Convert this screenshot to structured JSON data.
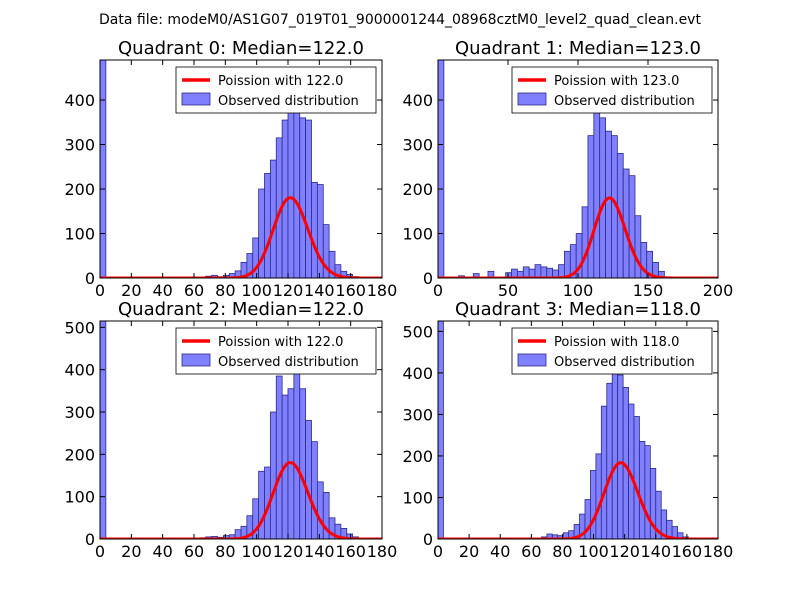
{
  "figure": {
    "suptitle": "Data file: modeM0/AS1G07_019T01_9000001244_08968cztM0_level2_quad_clean.evt"
  },
  "colors": {
    "bar_fill": "#8080ff",
    "bar_stroke": "#2a2a8a",
    "line": "#ff0000",
    "axis": "#000000"
  },
  "chart_data": [
    {
      "type": "bar",
      "title": "Quadrant 0: Median=122.0",
      "xlim": [
        0,
        180
      ],
      "ylim": [
        0,
        490
      ],
      "xticks": [
        0,
        20,
        40,
        60,
        80,
        100,
        120,
        140,
        160,
        180
      ],
      "xtick_labels": [
        "0",
        "20",
        "40",
        "60",
        "80",
        "100",
        "120",
        "140",
        "160",
        "180"
      ],
      "yticks": [
        0,
        100,
        200,
        300,
        400
      ],
      "ytick_labels": [
        "0",
        "100",
        "200",
        "300",
        "400"
      ],
      "bin_width": 3.75,
      "bin_lefts": [
        0,
        67.5,
        71.25,
        75,
        78.75,
        82.5,
        86.25,
        90,
        93.75,
        97.5,
        101.25,
        105,
        108.75,
        112.5,
        116.25,
        120,
        123.75,
        127.5,
        131.25,
        135,
        138.75,
        142.5,
        146.25,
        150,
        153.75,
        157.5,
        161.25
      ],
      "counts": [
        490,
        4,
        6,
        3,
        6,
        10,
        16,
        35,
        55,
        90,
        200,
        235,
        265,
        315,
        355,
        380,
        440,
        360,
        355,
        215,
        210,
        120,
        60,
        30,
        15,
        8,
        3
      ],
      "legend": {
        "line_label": "Poission with 122.0",
        "bar_label": "Observed distribution",
        "position": "upper right"
      },
      "poisson": {
        "mean": 122.0,
        "total": 5000
      }
    },
    {
      "type": "bar",
      "title": "Quadrant 1: Median=123.0",
      "xlim": [
        0,
        200
      ],
      "ylim": [
        0,
        490
      ],
      "xticks": [
        0,
        50,
        100,
        150,
        200
      ],
      "xtick_labels": [
        "0",
        "50",
        "100",
        "150",
        "200"
      ],
      "yticks": [
        0,
        100,
        200,
        300,
        400
      ],
      "ytick_labels": [
        "0",
        "100",
        "200",
        "300",
        "400"
      ],
      "bin_width": 4.2,
      "bin_lefts": [
        0,
        14.7,
        25.2,
        35.7,
        48.3,
        52.5,
        56.7,
        60.9,
        65.1,
        69.3,
        73.5,
        77.7,
        81.9,
        86.1,
        90.3,
        94.5,
        98.7,
        102.9,
        107.1,
        111.3,
        115.5,
        119.7,
        123.9,
        128.1,
        132.3,
        136.5,
        140.7,
        144.9,
        149.1,
        153.3,
        157.5
      ],
      "counts": [
        490,
        5,
        10,
        15,
        12,
        20,
        15,
        25,
        20,
        30,
        25,
        22,
        18,
        30,
        60,
        75,
        100,
        160,
        320,
        400,
        360,
        330,
        320,
        280,
        245,
        230,
        140,
        80,
        60,
        35,
        15
      ],
      "legend": {
        "line_label": "Poission with 123.0",
        "bar_label": "Observed distribution",
        "position": "upper right"
      },
      "poisson": {
        "mean": 123.0,
        "total": 5000
      }
    },
    {
      "type": "bar",
      "title": "Quadrant 2: Median=122.0",
      "xlim": [
        0,
        180
      ],
      "ylim": [
        0,
        515
      ],
      "xticks": [
        0,
        20,
        40,
        60,
        80,
        100,
        120,
        140,
        160,
        180
      ],
      "xtick_labels": [
        "0",
        "20",
        "40",
        "60",
        "80",
        "100",
        "120",
        "140",
        "160",
        "180"
      ],
      "yticks": [
        0,
        100,
        200,
        300,
        400,
        500
      ],
      "ytick_labels": [
        "0",
        "100",
        "200",
        "300",
        "400",
        "500"
      ],
      "bin_width": 3.75,
      "bin_lefts": [
        0,
        63.75,
        67.5,
        71.25,
        75,
        78.75,
        82.5,
        86.25,
        90,
        93.75,
        97.5,
        101.25,
        105,
        108.75,
        112.5,
        116.25,
        120,
        123.75,
        127.5,
        131.25,
        135,
        138.75,
        142.5,
        146.25,
        150,
        153.75,
        157.5,
        161.25
      ],
      "counts": [
        515,
        3,
        5,
        6,
        4,
        8,
        10,
        22,
        30,
        55,
        95,
        160,
        170,
        300,
        385,
        340,
        355,
        420,
        355,
        280,
        230,
        135,
        110,
        50,
        35,
        25,
        12,
        5
      ],
      "legend": {
        "line_label": "Poission with 122.0",
        "bar_label": "Observed distribution",
        "position": "upper right"
      },
      "poisson": {
        "mean": 122.0,
        "total": 5000
      }
    },
    {
      "type": "bar",
      "title": "Quadrant 3: Median=118.0",
      "xlim": [
        0,
        180
      ],
      "ylim": [
        0,
        525
      ],
      "xticks": [
        0,
        20,
        40,
        60,
        80,
        100,
        120,
        140,
        160,
        180
      ],
      "xtick_labels": [
        "0",
        "20",
        "40",
        "60",
        "80",
        "100",
        "120",
        "140",
        "160",
        "180"
      ],
      "yticks": [
        0,
        100,
        200,
        300,
        400,
        500
      ],
      "ytick_labels": [
        "0",
        "100",
        "200",
        "300",
        "400",
        "500"
      ],
      "bin_width": 3.5,
      "bin_lefts": [
        0,
        66.5,
        70,
        73.5,
        77,
        80.5,
        84,
        87.5,
        91,
        94.5,
        98,
        101.5,
        105,
        108.5,
        112,
        115.5,
        119,
        122.5,
        126,
        129.5,
        133,
        136.5,
        140,
        143.5,
        147,
        150.5,
        154,
        157.5
      ],
      "counts": [
        525,
        5,
        12,
        10,
        8,
        15,
        20,
        35,
        60,
        95,
        165,
        205,
        320,
        375,
        460,
        395,
        365,
        325,
        295,
        235,
        225,
        170,
        115,
        70,
        45,
        30,
        15,
        5
      ],
      "legend": {
        "line_label": "Poission with 118.0",
        "bar_label": "Observed distribution",
        "position": "upper right"
      },
      "poisson": {
        "mean": 118.0,
        "total": 5000
      }
    }
  ]
}
